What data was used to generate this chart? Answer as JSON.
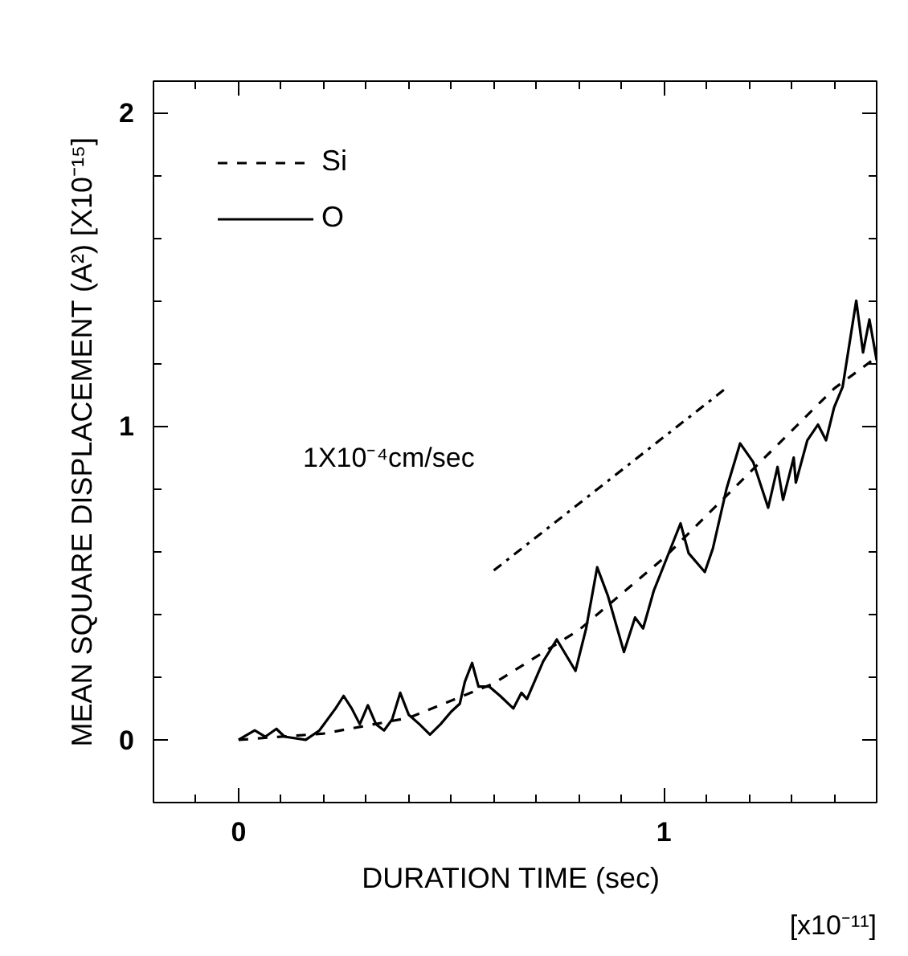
{
  "chart_data": {
    "type": "line",
    "xlabel": "DURATION TIME  (sec)",
    "ylabel": "MEAN SQUARE DISPLACEMENT (A²) [X10⁻¹⁵]",
    "annotations": [
      "[x10⁻¹¹]",
      "1X10⁻⁴cm/sec"
    ],
    "xlim": [
      -0.2,
      1.5
    ],
    "ylim": [
      -0.2,
      2.1
    ],
    "xticks": [
      {
        "value": -0.1,
        "label": null
      },
      0,
      {
        "value": 0.1,
        "label": null
      },
      {
        "value": 0.2,
        "label": null
      },
      {
        "value": 0.3,
        "label": null
      },
      {
        "value": 0.4,
        "label": null
      },
      {
        "value": 0.5,
        "label": null
      },
      {
        "value": 0.6,
        "label": null
      },
      {
        "value": 0.7,
        "label": null
      },
      {
        "value": 0.8,
        "label": null
      },
      {
        "value": 0.9,
        "label": null
      },
      1,
      {
        "value": 1.1,
        "label": null
      },
      {
        "value": 1.2,
        "label": null
      },
      {
        "value": 1.3,
        "label": null
      },
      {
        "value": 1.4,
        "label": null
      }
    ],
    "yticks": [
      0,
      {
        "value": 0.2,
        "label": null
      },
      {
        "value": 0.4,
        "label": null
      },
      {
        "value": 0.6,
        "label": null
      },
      {
        "value": 0.8,
        "label": null
      },
      1,
      {
        "value": 1.2,
        "label": null
      },
      {
        "value": 1.4,
        "label": null
      },
      {
        "value": 1.6,
        "label": null
      },
      {
        "value": 1.8,
        "label": null
      },
      2
    ],
    "grid": false,
    "legend": "top left",
    "series": [
      {
        "name": "Si",
        "color": "#000000",
        "line_style": "dashed",
        "x": [
          0,
          0.2,
          0.4,
          0.6,
          0.8,
          1.0,
          1.2,
          1.4,
          1.5
        ],
        "values": [
          0,
          0.02,
          0.07,
          0.18,
          0.35,
          0.58,
          0.85,
          1.12,
          1.22
        ]
      },
      {
        "name": "O",
        "color": "#000000",
        "line_style": "solid",
        "x": [
          0,
          0.038,
          0.063,
          0.089,
          0.108,
          0.158,
          0.19,
          0.228,
          0.247,
          0.266,
          0.285,
          0.304,
          0.323,
          0.342,
          0.361,
          0.38,
          0.4,
          0.425,
          0.45,
          0.475,
          0.5,
          0.52,
          0.532,
          0.549,
          0.564,
          0.589,
          0.615,
          0.646,
          0.665,
          0.678,
          0.716,
          0.748,
          0.792,
          0.817,
          0.843,
          0.868,
          0.906,
          0.932,
          0.951,
          0.976,
          1.001,
          1.039,
          1.058,
          1.096,
          1.115,
          1.147,
          1.179,
          1.21,
          1.245,
          1.267,
          1.28,
          1.305,
          1.31,
          1.337,
          1.362,
          1.381,
          1.4,
          1.42,
          1.452,
          1.468,
          1.483,
          1.5
        ],
        "values": [
          0,
          0.03,
          0.01,
          0.035,
          0.01,
          0,
          0.03,
          0.1,
          0.14,
          0.1,
          0.05,
          0.11,
          0.05,
          0.03,
          0.065,
          0.15,
          0.08,
          0.05,
          0.017,
          0.05,
          0.09,
          0.115,
          0.185,
          0.245,
          0.17,
          0.17,
          0.14,
          0.1,
          0.15,
          0.13,
          0.25,
          0.32,
          0.22,
          0.355,
          0.55,
          0.46,
          0.28,
          0.39,
          0.355,
          0.475,
          0.56,
          0.69,
          0.595,
          0.535,
          0.61,
          0.8,
          0.945,
          0.885,
          0.74,
          0.87,
          0.765,
          0.9,
          0.82,
          0.955,
          1.005,
          0.955,
          1.06,
          1.125,
          1.4,
          1.235,
          1.34,
          1.21
        ]
      },
      {
        "color": "#000000",
        "line_style": "dashdot",
        "x": [
          0.6,
          1.145
        ],
        "values": [
          0.54,
          1.12
        ]
      }
    ]
  }
}
